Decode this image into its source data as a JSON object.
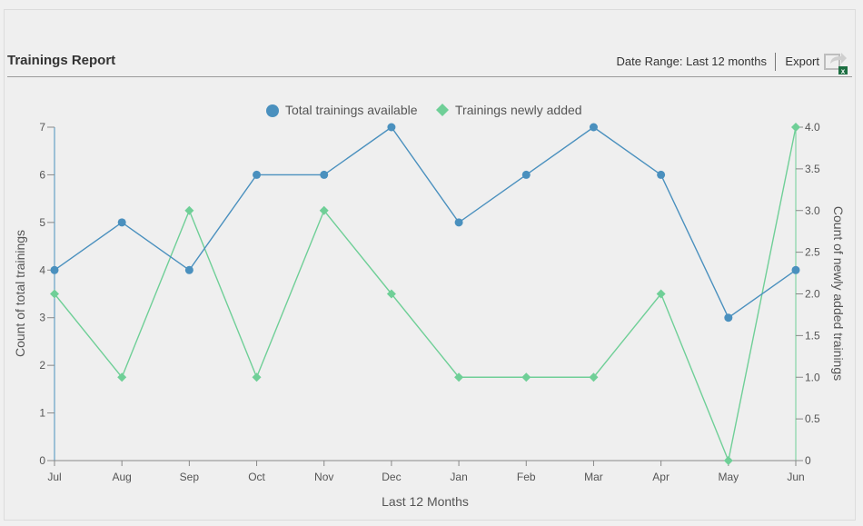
{
  "header": {
    "title": "Trainings Report",
    "date_range_label": "Date Range: Last 12 months",
    "export_label": "Export"
  },
  "colors": {
    "series1": "#4a90be",
    "series2": "#6fcf97",
    "axis": "#888888"
  },
  "chart_data": {
    "type": "line",
    "categories": [
      "Jul",
      "Aug",
      "Sep",
      "Oct",
      "Nov",
      "Dec",
      "Jan",
      "Feb",
      "Mar",
      "Apr",
      "May",
      "Jun"
    ],
    "series": [
      {
        "name": "Total trainings available",
        "axis": "left",
        "marker": "circle",
        "values": [
          4,
          5,
          4,
          6,
          6,
          7,
          5,
          6,
          7,
          6,
          3,
          4
        ]
      },
      {
        "name": "Trainings newly added",
        "axis": "right",
        "marker": "diamond",
        "values": [
          2,
          1,
          3,
          1,
          3,
          2,
          1,
          1,
          1,
          2,
          0,
          4
        ]
      }
    ],
    "xlabel": "Last 12 Months",
    "ylabel": "Count of total trainings",
    "y2label": "Count of newly added trainings",
    "ylim": [
      0,
      7
    ],
    "y2lim": [
      0,
      4
    ],
    "yticks": [
      "0",
      "1",
      "2",
      "3",
      "4",
      "5",
      "6",
      "7"
    ],
    "y2ticks": [
      "0",
      "0.5",
      "1.0",
      "1.5",
      "2.0",
      "2.5",
      "3.0",
      "3.5",
      "4.0"
    ],
    "legend_position": "top-center",
    "grid": false
  }
}
